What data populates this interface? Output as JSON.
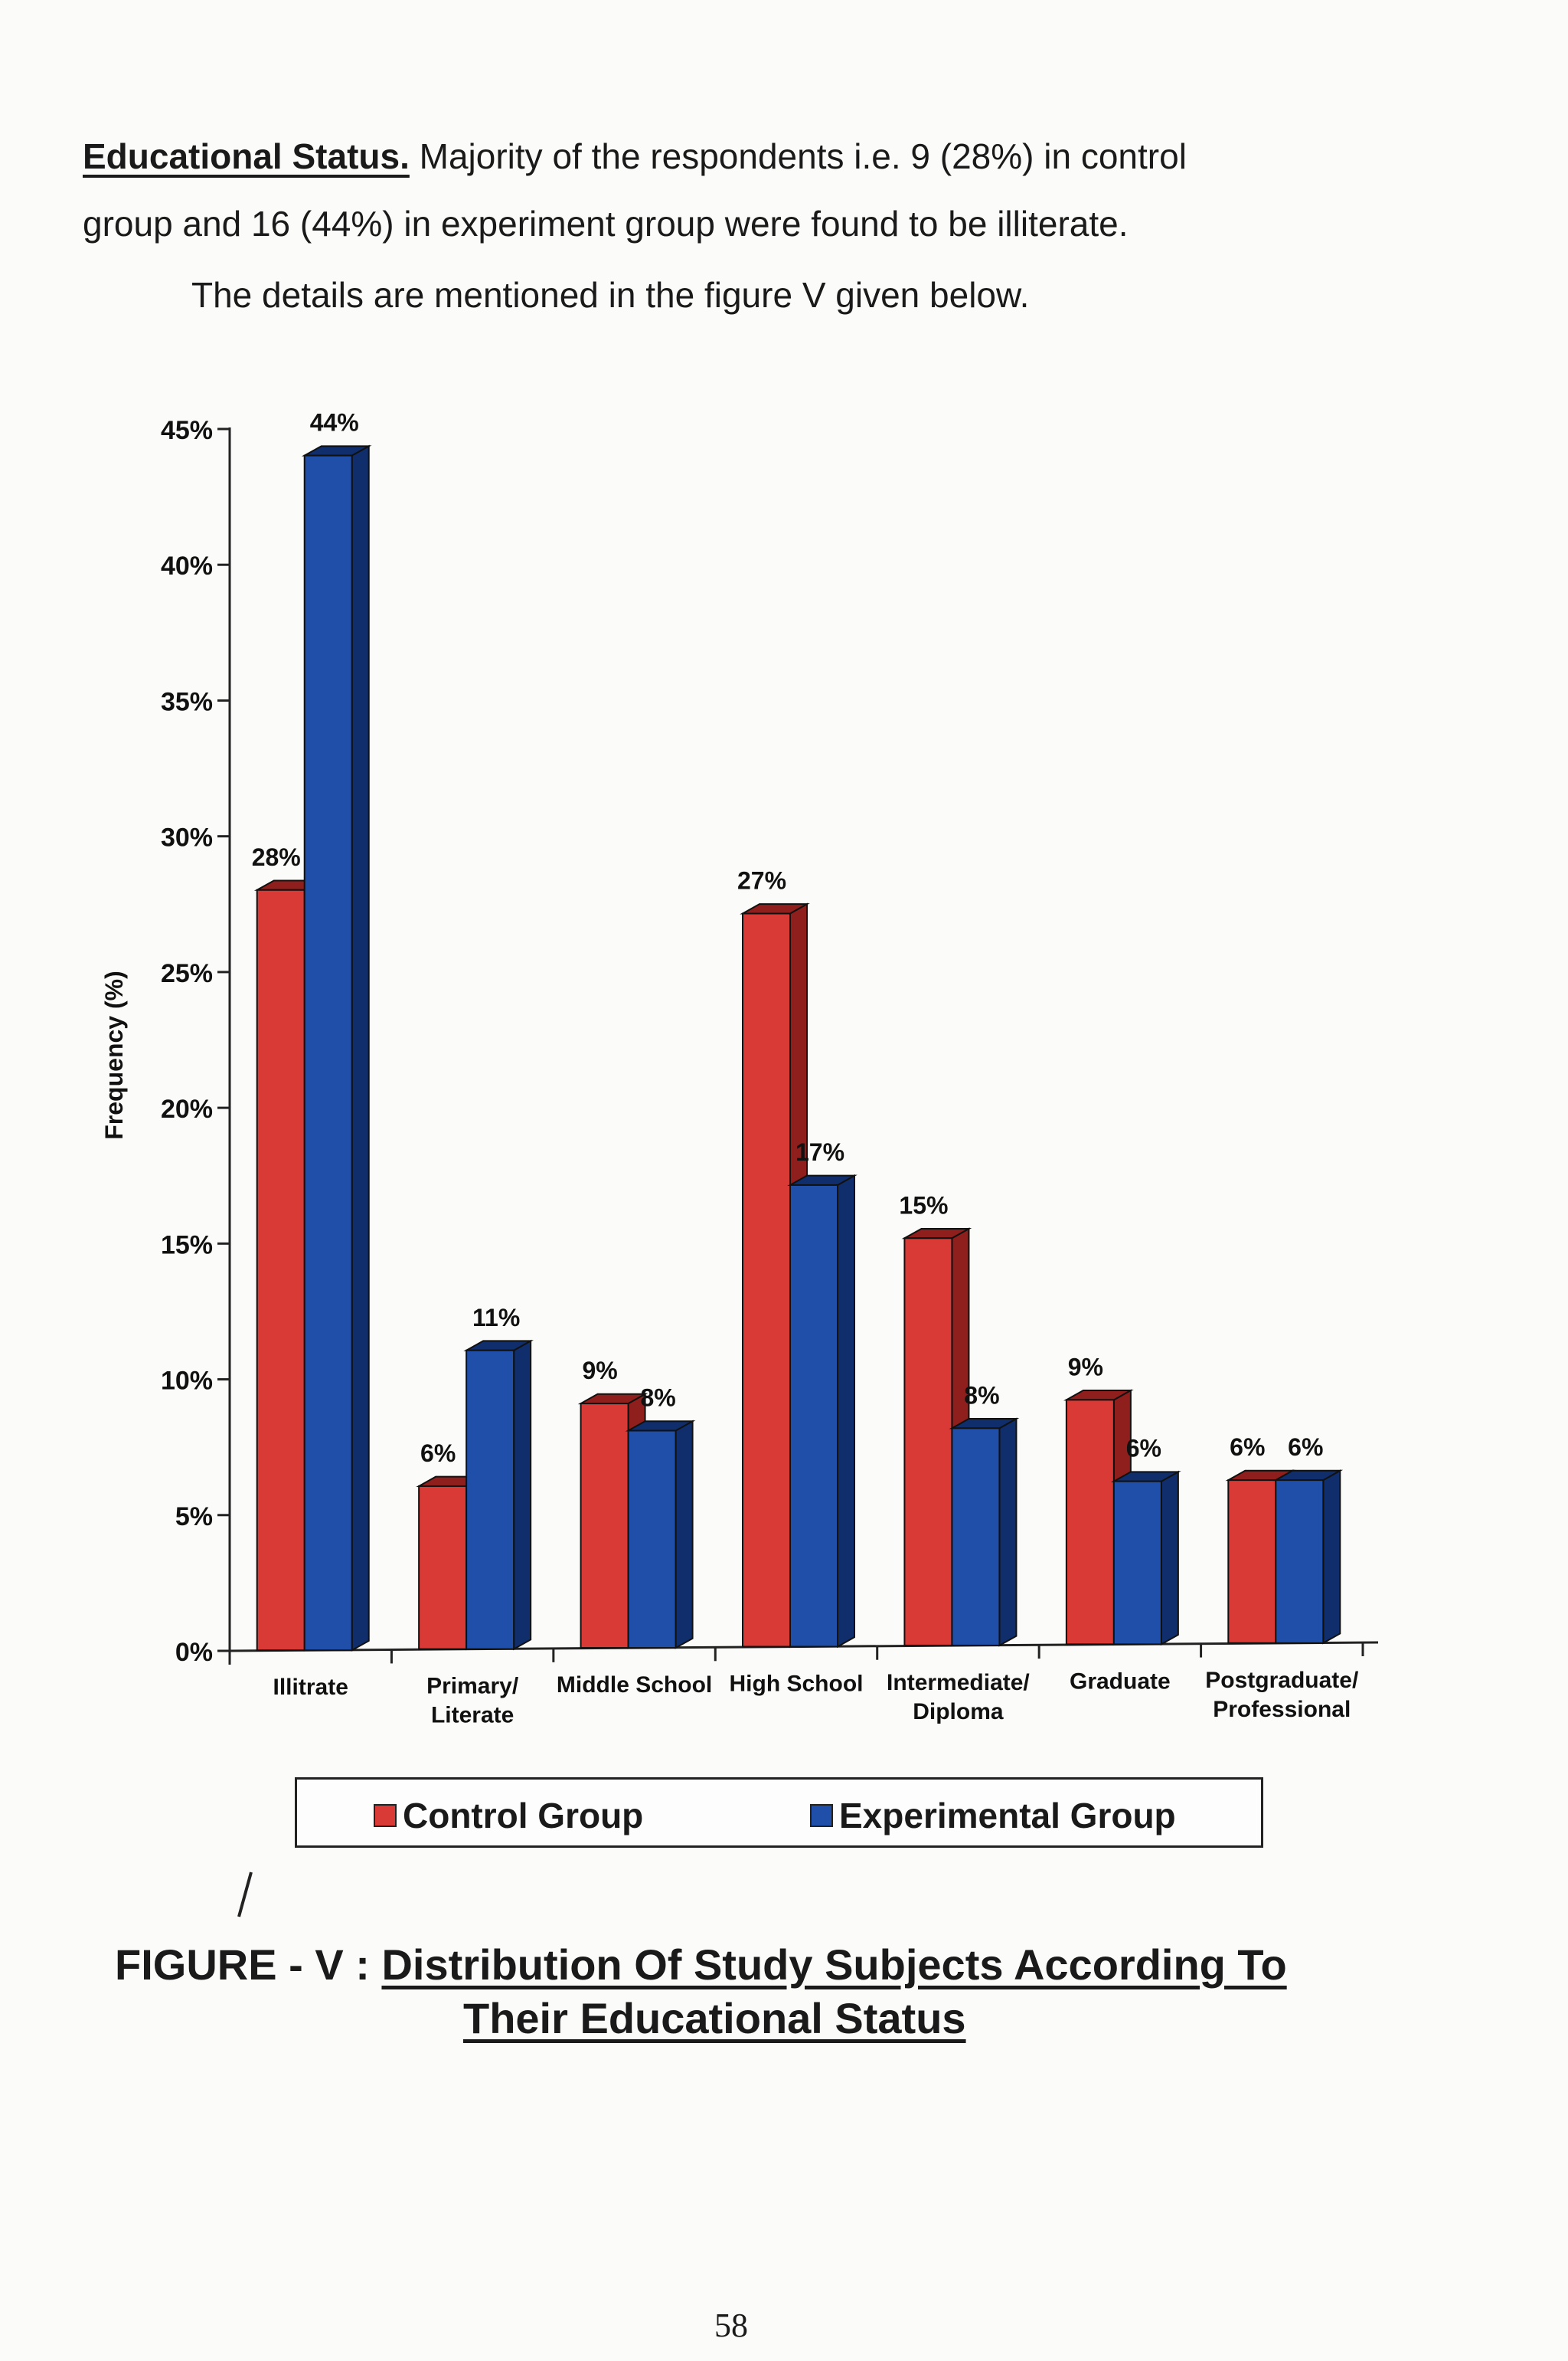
{
  "paragraph": {
    "heading": "Educational Status.",
    "text_line1": "Majority of the respondents i.e. 9 (28%) in control",
    "text_line2": "group and 16 (44%) in experiment group were found to be illiterate.",
    "text_line3": "The details are mentioned in the figure V given below."
  },
  "colors": {
    "control": "#d93a36",
    "control_side": "#8f1f1c",
    "experimental": "#1f4fa8",
    "experimental_side": "#0f2e6b",
    "axis": "#222222"
  },
  "chart_data": {
    "type": "bar",
    "title": "Distribution Of Study Subjects According To Their Educational Status",
    "xlabel": "",
    "ylabel": "Frequency (%)",
    "ylim": [
      0,
      45
    ],
    "yticks": [
      "0%",
      "5%",
      "10%",
      "15%",
      "20%",
      "25%",
      "30%",
      "35%",
      "40%",
      "45%"
    ],
    "categories": [
      [
        "Illitrate"
      ],
      [
        "Primary/",
        "Literate"
      ],
      [
        "Middle School"
      ],
      [
        "High School"
      ],
      [
        "Intermediate/",
        "Diploma"
      ],
      [
        "Graduate"
      ],
      [
        "Postgraduate/",
        "Professional"
      ]
    ],
    "series": [
      {
        "name": "Control Group",
        "values": [
          28,
          6,
          9,
          27,
          15,
          9,
          6
        ],
        "labels": [
          "28%",
          "6%",
          "9%",
          "27%",
          "15%",
          "9%",
          "6%"
        ]
      },
      {
        "name": "Experimental Group",
        "values": [
          44,
          11,
          8,
          17,
          8,
          6,
          6
        ],
        "labels": [
          "44%",
          "11%",
          "8%",
          "17%",
          "8%",
          "6%",
          "6%"
        ]
      }
    ],
    "legend": "bottom",
    "grid": false
  },
  "legend": {
    "control_label": "Control Group",
    "experimental_label": "Experimental Group"
  },
  "caption": {
    "label": "FIGURE - V :",
    "title_line1": "Distribution Of Study Subjects According To",
    "title_line2": "Their Educational Status"
  },
  "page_number": "58"
}
